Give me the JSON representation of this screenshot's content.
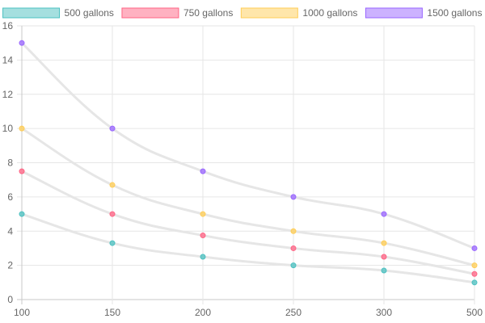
{
  "chart_data": {
    "type": "line",
    "title": "",
    "xlabel": "",
    "ylabel": "",
    "x": [
      100,
      150,
      200,
      250,
      300,
      500
    ],
    "x_tick_labels": [
      "100",
      "150",
      "200",
      "250",
      "300",
      "500"
    ],
    "ylim": [
      0,
      16
    ],
    "y_ticks": [
      0,
      2,
      4,
      6,
      8,
      10,
      12,
      14,
      16
    ],
    "grid": true,
    "legend_position": "top",
    "line_color": "#e6e6e6",
    "series": [
      {
        "name": "500 gallons",
        "color": "#4bc0c0",
        "values": [
          5,
          3.3,
          2.5,
          2,
          1.7,
          1
        ]
      },
      {
        "name": "750 gallons",
        "color": "#ff6384",
        "values": [
          7.5,
          5,
          3.75,
          3,
          2.5,
          1.5
        ]
      },
      {
        "name": "1000 gallons",
        "color": "#ffcd56",
        "values": [
          10,
          6.7,
          5,
          4,
          3.3,
          2
        ]
      },
      {
        "name": "1500 gallons",
        "color": "#9966ff",
        "values": [
          15,
          10,
          7.5,
          6,
          5,
          3
        ]
      }
    ]
  }
}
